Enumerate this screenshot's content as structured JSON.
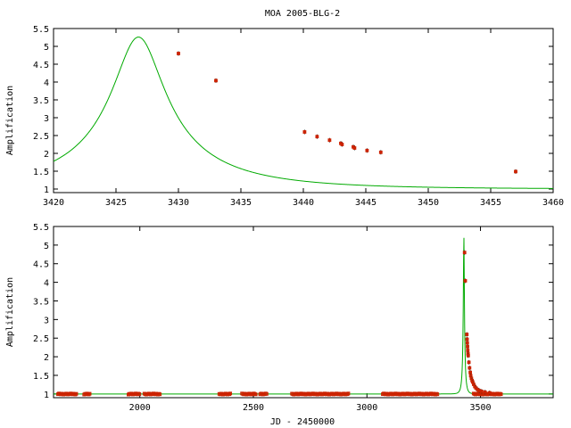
{
  "chart_data": [
    {
      "type": "scatter",
      "title": "MOA 2005-BLG-2",
      "xlabel": "",
      "ylabel": "Amplification",
      "xlim": [
        3420,
        3460
      ],
      "ylim": [
        0.9,
        5.5
      ],
      "xticks": [
        "3420",
        "3425",
        "3430",
        "3435",
        "3440",
        "3445",
        "3450",
        "3455",
        "3460"
      ],
      "yticks": [
        "1",
        "1.5",
        "2",
        "2.5",
        "3",
        "3.5",
        "4",
        "4.5",
        "5",
        "5.5"
      ],
      "model": {
        "peak_x": 3426.8,
        "peak_y": 5.26,
        "t_e": 11.0,
        "color_model": "#00aa00",
        "color_points": "#cc2200"
      },
      "points": [
        {
          "x": 3430.0,
          "y": 4.8
        },
        {
          "x": 3433.0,
          "y": 4.04
        },
        {
          "x": 3440.1,
          "y": 2.6
        },
        {
          "x": 3441.1,
          "y": 2.47
        },
        {
          "x": 3442.1,
          "y": 2.37
        },
        {
          "x": 3443.0,
          "y": 2.28
        },
        {
          "x": 3443.1,
          "y": 2.25
        },
        {
          "x": 3444.0,
          "y": 2.18
        },
        {
          "x": 3444.1,
          "y": 2.15
        },
        {
          "x": 3445.1,
          "y": 2.08
        },
        {
          "x": 3446.2,
          "y": 2.03
        },
        {
          "x": 3457.0,
          "y": 1.49
        }
      ]
    },
    {
      "type": "scatter",
      "title": "",
      "xlabel": "JD - 2450000",
      "ylabel": "Amplification",
      "xlim": [
        1620,
        3820
      ],
      "ylim": [
        0.9,
        5.5
      ],
      "xticks": [
        "2000",
        "2500",
        "3000",
        "3500"
      ],
      "yticks": [
        "1",
        "1.5",
        "2",
        "2.5",
        "3",
        "3.5",
        "4",
        "4.5",
        "5",
        "5.5"
      ],
      "model": {
        "peak_x": 3426.8,
        "peak_y": 5.26,
        "t_e": 11.0,
        "color_model": "#00aa00",
        "color_points": "#cc2200"
      },
      "baseline_segments": [
        {
          "from": 1640,
          "to": 1720
        },
        {
          "from": 1755,
          "to": 1780
        },
        {
          "from": 1950,
          "to": 2000
        },
        {
          "from": 2020,
          "to": 2090
        },
        {
          "from": 2350,
          "to": 2400
        },
        {
          "from": 2450,
          "to": 2510
        },
        {
          "from": 2530,
          "to": 2560
        },
        {
          "from": 2670,
          "to": 2920
        },
        {
          "from": 3070,
          "to": 3310
        },
        {
          "from": 3470,
          "to": 3590
        }
      ],
      "points": [
        {
          "x": 3430,
          "y": 4.8
        },
        {
          "x": 3433,
          "y": 4.04
        },
        {
          "x": 3440,
          "y": 2.6
        },
        {
          "x": 3441,
          "y": 2.47
        },
        {
          "x": 3442,
          "y": 2.37
        },
        {
          "x": 3443,
          "y": 2.27
        },
        {
          "x": 3444,
          "y": 2.17
        },
        {
          "x": 3445,
          "y": 2.08
        },
        {
          "x": 3446,
          "y": 2.03
        },
        {
          "x": 3449,
          "y": 1.85
        },
        {
          "x": 3452,
          "y": 1.7
        },
        {
          "x": 3455,
          "y": 1.58
        },
        {
          "x": 3457,
          "y": 1.49
        },
        {
          "x": 3460,
          "y": 1.42
        },
        {
          "x": 3463,
          "y": 1.36
        },
        {
          "x": 3466,
          "y": 1.32
        },
        {
          "x": 3470,
          "y": 1.26
        },
        {
          "x": 3475,
          "y": 1.2
        },
        {
          "x": 3480,
          "y": 1.16
        },
        {
          "x": 3487,
          "y": 1.12
        },
        {
          "x": 3495,
          "y": 1.09
        },
        {
          "x": 3505,
          "y": 1.07
        },
        {
          "x": 3520,
          "y": 1.05
        },
        {
          "x": 3540,
          "y": 1.03
        }
      ]
    }
  ]
}
